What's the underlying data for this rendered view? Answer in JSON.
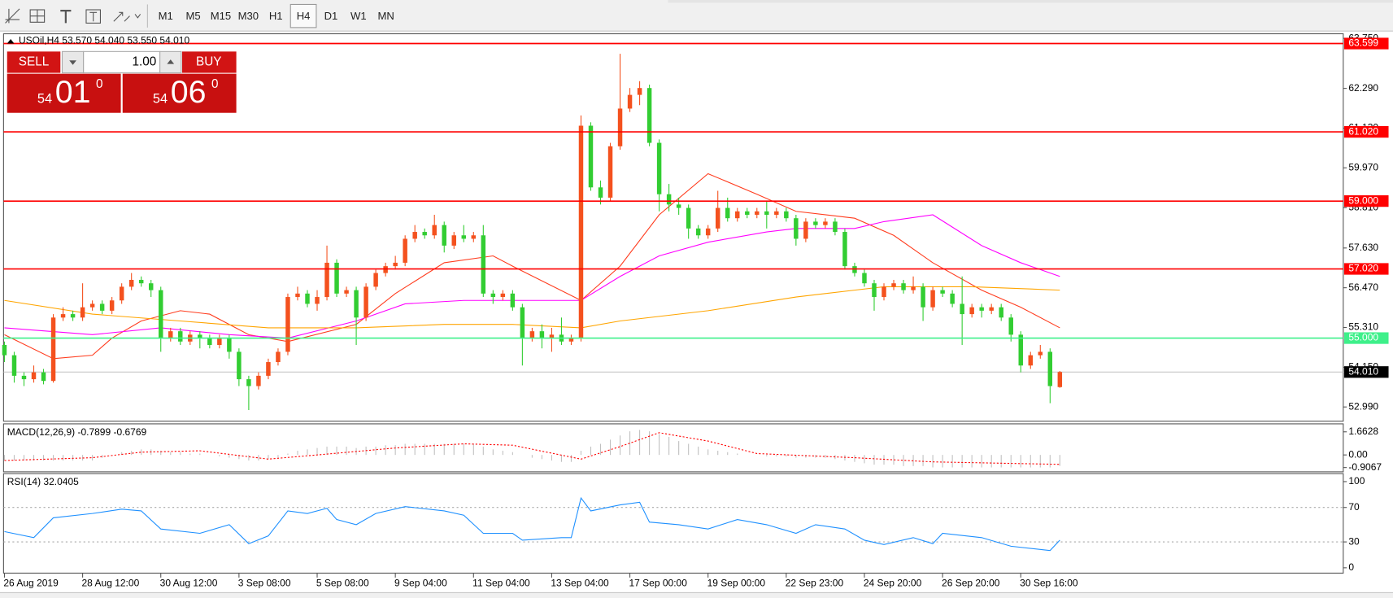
{
  "toolbar": {
    "timeframes": [
      "M1",
      "M5",
      "M15",
      "M30",
      "H1",
      "H4",
      "D1",
      "W1",
      "MN"
    ],
    "active": "H4"
  },
  "trade_panel": {
    "sell": "SELL",
    "buy": "BUY",
    "lot": "1.00",
    "bid": {
      "big": "54",
      "pips": "01",
      "frac": "0"
    },
    "ask": {
      "big": "54",
      "pips": "06",
      "frac": "0"
    }
  },
  "chart_data": [
    {
      "type": "candlestick",
      "title": "USOil,H4  53.570 54.040 53.550 54.010",
      "categories": [
        "26 Aug 2019",
        null,
        null,
        null,
        null,
        null,
        null,
        null,
        "28 Aug 12:00",
        null,
        null,
        null,
        null,
        null,
        null,
        null,
        "30 Aug 12:00",
        null,
        null,
        null,
        null,
        null,
        null,
        null,
        "3 Sep 08:00",
        null,
        null,
        null,
        null,
        null,
        null,
        null,
        "5 Sep 08:00",
        null,
        null,
        null,
        null,
        null,
        null,
        null,
        "9 Sep 04:00",
        null,
        null,
        null,
        null,
        null,
        null,
        null,
        "11 Sep 04:00",
        null,
        null,
        null,
        null,
        null,
        null,
        null,
        "13 Sep 04:00",
        null,
        null,
        null,
        null,
        null,
        null,
        null,
        "17 Sep 00:00",
        null,
        null,
        null,
        null,
        null,
        null,
        null,
        "19 Sep 00:00",
        null,
        null,
        null,
        null,
        null,
        null,
        null,
        "22 Sep 23:00",
        null,
        null,
        null,
        null,
        null,
        null,
        null,
        "24 Sep 20:00",
        null,
        null,
        null,
        null,
        null,
        null,
        null,
        "26 Sep 20:00",
        null,
        null,
        null,
        null,
        null,
        null,
        null,
        "30 Sep 16:00",
        null,
        null,
        null,
        null
      ],
      "open": [
        54.8,
        54.5,
        53.9,
        53.8,
        54.0,
        53.75,
        55.6,
        55.7,
        55.6,
        55.9,
        56.0,
        55.8,
        56.1,
        56.5,
        56.7,
        56.6,
        56.4,
        55.0,
        55.2,
        54.9,
        55.1,
        55.0,
        54.8,
        55.0,
        54.6,
        53.8,
        53.6,
        53.9,
        54.3,
        54.6,
        56.2,
        56.3,
        56.0,
        56.2,
        57.2,
        56.3,
        56.4,
        55.6,
        56.5,
        56.9,
        57.1,
        57.2,
        57.9,
        58.1,
        58.0,
        58.3,
        57.7,
        58.0,
        57.9,
        58.0,
        56.3,
        56.2,
        56.3,
        55.9,
        55.0,
        55.2,
        55.0,
        55.1,
        54.9,
        55.0,
        61.2,
        59.4,
        59.1,
        60.6,
        61.7,
        62.1,
        62.3,
        60.7,
        59.2,
        58.9,
        58.8,
        58.2,
        58.0,
        58.2,
        58.8,
        58.5,
        58.7,
        58.6,
        58.7,
        58.6,
        58.7,
        58.5,
        57.9,
        58.4,
        58.3,
        58.4,
        58.1,
        57.1,
        56.9,
        56.6,
        56.2,
        56.5,
        56.6,
        56.4,
        56.5,
        55.9,
        56.4,
        56.3,
        56.0,
        55.7,
        55.9,
        55.8,
        55.9,
        55.6,
        55.1,
        54.2,
        54.5,
        54.6,
        53.57
      ],
      "high": [
        54.9,
        54.6,
        54.0,
        54.2,
        54.1,
        55.7,
        55.9,
        55.8,
        56.6,
        56.1,
        56.1,
        56.2,
        56.6,
        56.9,
        56.8,
        56.7,
        56.5,
        55.3,
        55.3,
        55.2,
        55.2,
        55.1,
        55.1,
        55.1,
        54.7,
        53.9,
        54.0,
        54.4,
        54.7,
        56.3,
        56.5,
        56.4,
        56.4,
        57.7,
        57.3,
        56.5,
        56.5,
        56.6,
        57.0,
        57.2,
        57.4,
        58.0,
        58.3,
        58.2,
        58.6,
        58.4,
        58.1,
        58.3,
        58.1,
        58.3,
        56.4,
        56.4,
        56.4,
        56.0,
        55.3,
        55.4,
        55.3,
        55.6,
        55.1,
        61.5,
        61.3,
        59.6,
        60.7,
        63.3,
        62.3,
        62.5,
        62.4,
        60.8,
        59.5,
        59.1,
        58.9,
        58.3,
        58.3,
        59.3,
        59.1,
        58.8,
        58.8,
        58.8,
        59.0,
        58.8,
        58.8,
        58.6,
        58.5,
        58.5,
        58.5,
        58.5,
        58.2,
        57.2,
        57.0,
        56.7,
        56.6,
        56.7,
        56.7,
        56.8,
        56.6,
        56.5,
        56.5,
        56.4,
        56.8,
        56.0,
        56.0,
        56.0,
        56.0,
        55.7,
        55.2,
        54.6,
        54.8,
        54.7,
        54.04
      ],
      "low": [
        54.3,
        53.7,
        53.6,
        53.7,
        53.65,
        53.7,
        55.5,
        55.5,
        55.5,
        55.8,
        55.7,
        55.7,
        56.0,
        56.4,
        56.5,
        56.2,
        54.6,
        54.9,
        54.8,
        54.8,
        54.7,
        54.7,
        54.7,
        54.4,
        53.6,
        52.9,
        53.5,
        53.8,
        54.2,
        54.5,
        56.1,
        55.9,
        55.8,
        56.1,
        56.2,
        56.2,
        54.8,
        55.5,
        56.4,
        56.8,
        57.0,
        57.1,
        57.8,
        57.9,
        57.9,
        57.5,
        57.6,
        57.8,
        57.8,
        56.2,
        56.0,
        56.1,
        55.8,
        54.2,
        54.9,
        54.7,
        54.6,
        54.8,
        54.8,
        54.9,
        59.3,
        58.9,
        59.0,
        60.5,
        61.6,
        61.8,
        60.6,
        58.7,
        58.7,
        58.6,
        57.9,
        57.9,
        57.9,
        58.1,
        58.4,
        58.4,
        58.5,
        58.5,
        58.2,
        58.5,
        58.4,
        57.7,
        57.8,
        58.2,
        58.2,
        58.0,
        57.0,
        56.8,
        56.5,
        55.8,
        56.1,
        56.4,
        56.3,
        56.3,
        55.5,
        55.8,
        56.2,
        55.9,
        54.8,
        55.6,
        55.6,
        55.7,
        55.5,
        54.9,
        54.0,
        54.1,
        54.4,
        53.1,
        53.55
      ],
      "close": [
        54.5,
        53.9,
        53.8,
        54.0,
        53.75,
        55.6,
        55.7,
        55.6,
        55.9,
        56.0,
        55.8,
        56.1,
        56.5,
        56.7,
        56.6,
        56.4,
        55.0,
        55.2,
        54.9,
        55.1,
        55.0,
        54.8,
        55.0,
        54.6,
        53.8,
        53.6,
        53.9,
        54.3,
        54.6,
        56.2,
        56.3,
        56.0,
        56.2,
        57.2,
        56.3,
        56.4,
        55.6,
        56.5,
        56.9,
        57.1,
        57.2,
        57.9,
        58.1,
        58.0,
        58.3,
        57.7,
        58.0,
        57.9,
        58.0,
        56.3,
        56.2,
        56.3,
        55.9,
        55.0,
        55.2,
        55.0,
        55.1,
        54.9,
        55.0,
        61.2,
        59.4,
        59.1,
        60.6,
        61.7,
        62.1,
        62.3,
        60.7,
        59.2,
        58.9,
        58.8,
        58.2,
        58.0,
        58.2,
        58.8,
        58.5,
        58.7,
        58.6,
        58.7,
        58.6,
        58.7,
        58.5,
        57.9,
        58.4,
        58.3,
        58.4,
        58.1,
        57.1,
        56.9,
        56.6,
        56.2,
        56.5,
        56.6,
        56.4,
        56.5,
        55.9,
        56.4,
        56.3,
        56.0,
        55.7,
        55.9,
        55.8,
        55.9,
        55.6,
        55.1,
        54.2,
        54.5,
        54.6,
        53.6,
        54.01
      ],
      "up_color": "#f4511e",
      "down_color": "#32cd32",
      "ylim": [
        52.575,
        63.884
      ],
      "yticks": [
        {
          "value": 63.75,
          "label": "63.750"
        },
        {
          "value": 62.29,
          "label": "62.290"
        },
        {
          "value": 61.13,
          "label": "61.130"
        },
        {
          "value": 59.97,
          "label": "59.970"
        },
        {
          "value": 58.81,
          "label": "58.810"
        },
        {
          "value": 57.63,
          "label": "57.630"
        },
        {
          "value": 56.47,
          "label": "56.470"
        },
        {
          "value": 55.31,
          "label": "55.310"
        },
        {
          "value": 54.15,
          "label": "54.150"
        },
        {
          "value": 52.99,
          "label": "52.990"
        }
      ],
      "levels": [
        {
          "value": 63.599,
          "label": "63.599",
          "color": "#ff0000"
        },
        {
          "value": 61.02,
          "label": "61.020",
          "color": "#ff0000"
        },
        {
          "value": 59.0,
          "label": "59.000",
          "color": "#ff0000"
        },
        {
          "value": 57.02,
          "label": "57.020",
          "color": "#ff0000"
        },
        {
          "value": 55.0,
          "label": "55.000",
          "color": "#3ef08a"
        }
      ],
      "current": {
        "value": 54.01,
        "label": "54.010"
      },
      "moving_averages": [
        {
          "color": "#ff3c1e",
          "x": [
            0,
            5,
            9,
            11,
            14,
            18,
            21,
            25,
            29,
            36,
            40,
            45,
            50,
            52,
            59,
            63,
            67,
            72,
            77,
            81,
            87,
            91,
            95,
            100,
            104,
            108
          ],
          "values": [
            55.1,
            54.4,
            54.5,
            55.0,
            55.5,
            55.8,
            55.7,
            55.1,
            54.9,
            55.4,
            56.3,
            57.2,
            57.4,
            57.1,
            56.1,
            57.1,
            58.6,
            59.8,
            59.2,
            58.7,
            58.5,
            58.0,
            57.2,
            56.4,
            55.9,
            55.3
          ]
        },
        {
          "color": "#ff00ff",
          "x": [
            0,
            9,
            16,
            23,
            29,
            36,
            41,
            47,
            52,
            59,
            63,
            67,
            72,
            78,
            81,
            87,
            90,
            95,
            100,
            104,
            108
          ],
          "values": [
            55.3,
            55.1,
            55.3,
            55.1,
            55.0,
            55.5,
            56.0,
            56.1,
            56.1,
            56.1,
            56.8,
            57.4,
            57.8,
            58.1,
            58.2,
            58.2,
            58.4,
            58.6,
            57.7,
            57.2,
            56.8
          ]
        },
        {
          "color": "#ffa500",
          "x": [
            0,
            9,
            18,
            27,
            36,
            45,
            52,
            59,
            63,
            72,
            81,
            87,
            90,
            99,
            108
          ],
          "values": [
            56.1,
            55.7,
            55.5,
            55.3,
            55.3,
            55.4,
            55.4,
            55.3,
            55.5,
            55.8,
            56.2,
            56.4,
            56.5,
            56.5,
            56.4
          ]
        }
      ]
    },
    {
      "type": "macd",
      "title": "MACD(12,26,9) -0.7899 -0.6769",
      "values": [
        -0.4,
        -0.4,
        -0.4,
        -0.4,
        -0.4,
        -0.4,
        -0.4,
        -0.4,
        -0.4,
        -0.4,
        -0.2,
        0.0,
        0.2,
        0.3,
        0.4,
        0.4,
        0.3,
        0.2,
        0.2,
        0.1,
        0.1,
        0.0,
        -0.1,
        -0.2,
        -0.3,
        -0.4,
        -0.4,
        -0.3,
        -0.2,
        0.1,
        0.3,
        0.4,
        0.5,
        0.6,
        0.6,
        0.6,
        0.5,
        0.6,
        0.6,
        0.7,
        0.7,
        0.8,
        0.8,
        0.8,
        0.8,
        0.8,
        0.8,
        0.8,
        0.8,
        0.6,
        0.4,
        0.3,
        0.2,
        0.0,
        -0.2,
        -0.3,
        -0.4,
        -0.5,
        -0.5,
        0.3,
        0.6,
        0.8,
        1.1,
        1.4,
        1.7,
        1.8,
        1.7,
        1.5,
        1.3,
        1.0,
        0.8,
        0.6,
        0.4,
        0.3,
        0.2,
        0.1,
        0.0,
        0.0,
        -0.1,
        -0.1,
        -0.1,
        -0.2,
        -0.2,
        -0.2,
        -0.2,
        -0.3,
        -0.4,
        -0.5,
        -0.6,
        -0.7,
        -0.7,
        -0.7,
        -0.8,
        -0.8,
        -0.8,
        -0.9,
        -0.9,
        -0.9,
        -0.9,
        -0.9,
        -0.9,
        -0.9,
        -0.9,
        -0.9,
        -0.9,
        -0.9,
        -0.9,
        -0.9,
        -0.7899
      ],
      "color": "#c0c0c0",
      "signal": {
        "color": "#ff0000",
        "x": [
          0,
          9,
          14,
          20,
          27,
          32,
          40,
          47,
          52,
          59,
          63,
          67,
          72,
          77,
          87,
          95,
          108
        ],
        "values": [
          -0.4,
          -0.2,
          0.2,
          0.3,
          -0.3,
          0.0,
          0.5,
          0.8,
          0.7,
          -0.3,
          0.6,
          1.6,
          1.0,
          0.1,
          -0.2,
          -0.5,
          -0.6769
        ]
      },
      "ylim": [
        -1.215,
        2.238
      ],
      "yticks": [
        1.6628,
        {
          "value": 0,
          "label": "0.00"
        },
        -0.9067
      ]
    },
    {
      "type": "line",
      "title": "RSI(14) 32.0405",
      "color": "#1e90ff",
      "x": [
        0,
        3,
        5,
        9,
        12,
        14,
        16,
        20,
        23,
        25,
        27,
        29,
        31,
        33,
        34,
        36,
        38,
        41,
        45,
        47,
        49,
        52,
        53,
        57,
        58,
        59,
        60,
        63,
        65,
        66,
        69,
        72,
        75,
        78,
        81,
        83,
        86,
        88,
        90,
        93,
        95,
        96,
        100,
        103,
        107,
        108
      ],
      "values": [
        42,
        35,
        58,
        63,
        68,
        66,
        45,
        40,
        50,
        28,
        37,
        66,
        63,
        69,
        56,
        50,
        63,
        71,
        66,
        61,
        40,
        40,
        32,
        35,
        35,
        81,
        66,
        73,
        76,
        53,
        50,
        45,
        56,
        50,
        40,
        50,
        45,
        32,
        27,
        35,
        28,
        40,
        35,
        25,
        20,
        32.0405
      ],
      "ylim": [
        -6.2,
        109.3
      ],
      "yticks": [
        100,
        70,
        30,
        0
      ],
      "dotted_levels": [
        70,
        30
      ]
    }
  ]
}
